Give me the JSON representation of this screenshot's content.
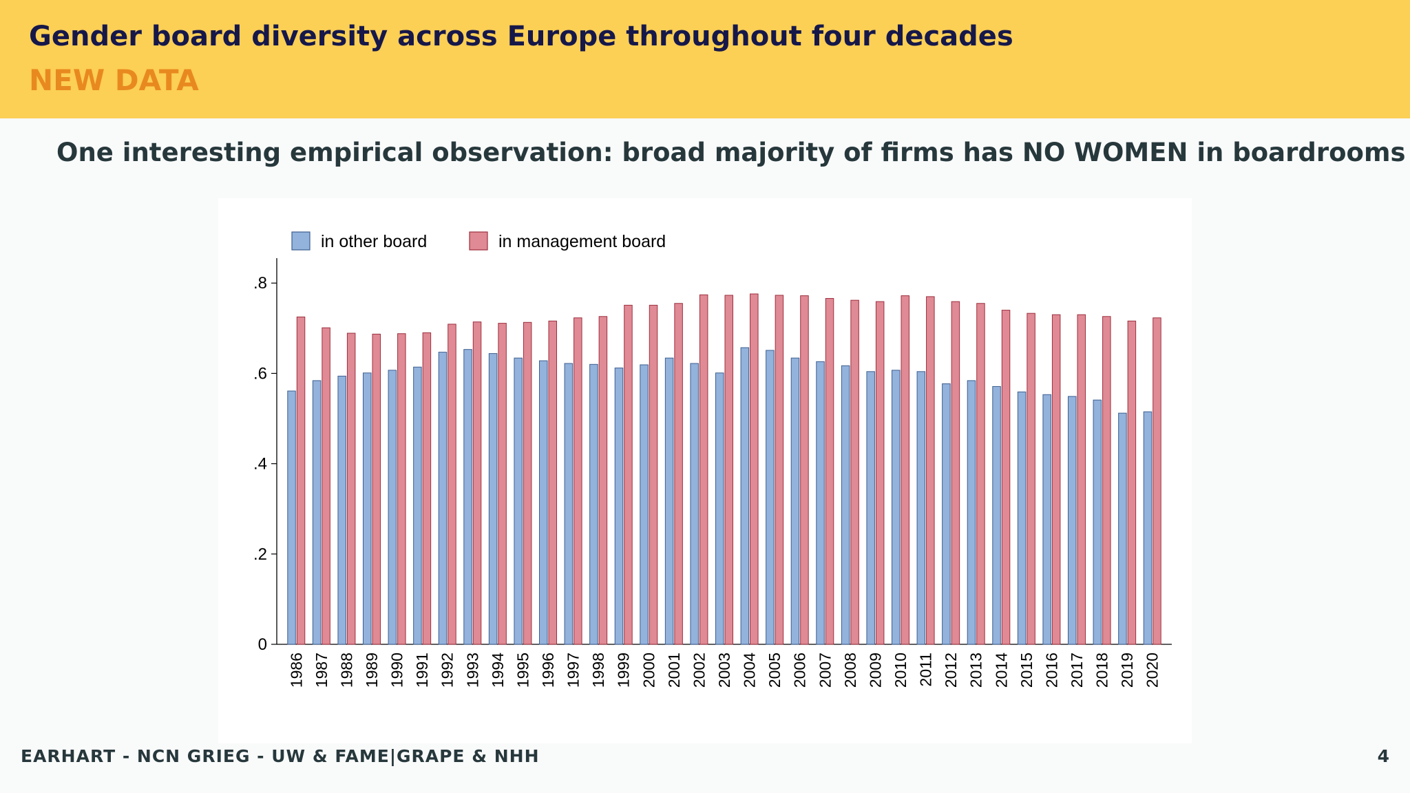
{
  "slide": {
    "title": "Gender board diversity across Europe throughout four decades",
    "subtitle": "NEW DATA",
    "headline": "One interesting empirical observation: broad majority of firms has NO WOMEN in boardrooms",
    "footer": "EARHART - NCN GRIEG - UW & FAME|GRAPE & NHH",
    "page_number": "4"
  },
  "colors": {
    "header_bg": "#fccf55",
    "title": "#16184a",
    "subtitle": "#e8891f",
    "series_other_fill": "#93b2dc",
    "series_other_stroke": "#3d5f8f",
    "series_mgmt_fill": "#df8a95",
    "series_mgmt_stroke": "#9c2f3d"
  },
  "chart_data": {
    "type": "bar",
    "title": "",
    "xlabel": "",
    "ylabel": "",
    "ylim": [
      0,
      0.84
    ],
    "yticks": [
      0,
      0.2,
      0.4,
      0.6,
      0.8
    ],
    "ytick_labels": [
      "0",
      ".2",
      ".4",
      ".6",
      ".8"
    ],
    "grid": false,
    "legend_position": "top-left",
    "categories": [
      "1986",
      "1987",
      "1988",
      "1989",
      "1990",
      "1991",
      "1992",
      "1993",
      "1994",
      "1995",
      "1996",
      "1997",
      "1998",
      "1999",
      "2000",
      "2001",
      "2002",
      "2003",
      "2004",
      "2005",
      "2006",
      "2007",
      "2008",
      "2009",
      "2010",
      "2011",
      "2012",
      "2013",
      "2014",
      "2015",
      "2016",
      "2017",
      "2018",
      "2019",
      "2020"
    ],
    "series": [
      {
        "name": "in other board",
        "values": [
          0.561,
          0.584,
          0.594,
          0.601,
          0.607,
          0.614,
          0.647,
          0.653,
          0.644,
          0.634,
          0.628,
          0.622,
          0.62,
          0.612,
          0.619,
          0.634,
          0.622,
          0.601,
          0.657,
          0.651,
          0.634,
          0.626,
          0.617,
          0.604,
          0.607,
          0.604,
          0.577,
          0.584,
          0.571,
          0.559,
          0.553,
          0.549,
          0.541,
          0.512,
          0.515
        ]
      },
      {
        "name": "in management board",
        "values": [
          0.725,
          0.701,
          0.689,
          0.687,
          0.688,
          0.69,
          0.709,
          0.714,
          0.711,
          0.713,
          0.716,
          0.723,
          0.726,
          0.751,
          0.751,
          0.755,
          0.774,
          0.773,
          0.776,
          0.773,
          0.772,
          0.766,
          0.762,
          0.759,
          0.772,
          0.77,
          0.759,
          0.755,
          0.74,
          0.733,
          0.73,
          0.73,
          0.726,
          0.716,
          0.723
        ]
      }
    ]
  }
}
